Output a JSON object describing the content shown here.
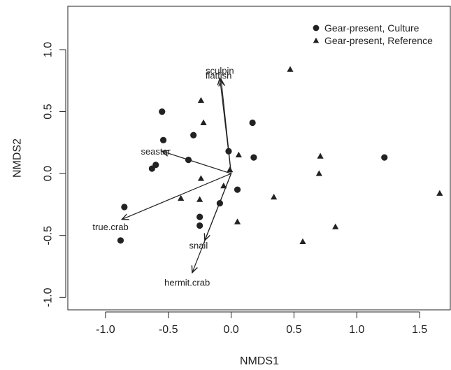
{
  "chart_data": {
    "type": "scatter",
    "title": "",
    "xlabel": "NMDS1",
    "ylabel": "NMDS2",
    "xlim": [
      -1.3,
      1.75
    ],
    "ylim": [
      -1.1,
      1.35
    ],
    "grid": false,
    "legend": {
      "placement": "top-right",
      "entries": [
        {
          "name": "Gear-present, Culture",
          "marker": "circle"
        },
        {
          "name": "Gear-present, Reference",
          "marker": "triangle"
        }
      ]
    },
    "x_ticks": [
      {
        "value": -1.0,
        "label": "-1.0"
      },
      {
        "value": -0.5,
        "label": "-0.5"
      },
      {
        "value": 0.0,
        "label": "0.0"
      },
      {
        "value": 0.5,
        "label": "0.5"
      },
      {
        "value": 1.0,
        "label": "1.0"
      },
      {
        "value": 1.5,
        "label": "1.5"
      }
    ],
    "y_ticks": [
      {
        "value": -1.0,
        "label": "-1.0"
      },
      {
        "value": -0.5,
        "label": "-0.5"
      },
      {
        "value": 0.0,
        "label": "0.0"
      },
      {
        "value": 0.5,
        "label": "0.5"
      },
      {
        "value": 1.0,
        "label": "1.0"
      }
    ],
    "series": [
      {
        "name": "Gear-present, Culture",
        "marker": "circle",
        "color": "#222222",
        "points": [
          {
            "x": -0.55,
            "y": 0.5
          },
          {
            "x": -0.54,
            "y": 0.27
          },
          {
            "x": -0.3,
            "y": 0.31
          },
          {
            "x": -0.6,
            "y": 0.07
          },
          {
            "x": -0.63,
            "y": 0.04
          },
          {
            "x": -0.34,
            "y": 0.11
          },
          {
            "x": -0.02,
            "y": 0.18
          },
          {
            "x": 0.17,
            "y": 0.41
          },
          {
            "x": 0.18,
            "y": 0.13
          },
          {
            "x": 1.22,
            "y": 0.13
          },
          {
            "x": 0.05,
            "y": -0.13
          },
          {
            "x": -0.09,
            "y": -0.24
          },
          {
            "x": -0.85,
            "y": -0.27
          },
          {
            "x": -0.25,
            "y": -0.35
          },
          {
            "x": -0.25,
            "y": -0.42
          },
          {
            "x": -0.88,
            "y": -0.54
          }
        ]
      },
      {
        "name": "Gear-present, Reference",
        "marker": "triangle",
        "color": "#222222",
        "points": [
          {
            "x": 0.47,
            "y": 0.84
          },
          {
            "x": -0.24,
            "y": 0.59
          },
          {
            "x": -0.22,
            "y": 0.41
          },
          {
            "x": 0.06,
            "y": 0.15
          },
          {
            "x": -0.01,
            "y": 0.03
          },
          {
            "x": 0.71,
            "y": 0.14
          },
          {
            "x": 0.7,
            "y": 0.0
          },
          {
            "x": -0.24,
            "y": -0.04
          },
          {
            "x": -0.06,
            "y": -0.1
          },
          {
            "x": -0.4,
            "y": -0.2
          },
          {
            "x": -0.25,
            "y": -0.21
          },
          {
            "x": 0.34,
            "y": -0.19
          },
          {
            "x": 1.66,
            "y": -0.16
          },
          {
            "x": 0.05,
            "y": -0.39
          },
          {
            "x": 0.83,
            "y": -0.43
          },
          {
            "x": 0.57,
            "y": -0.55
          }
        ]
      }
    ],
    "vectors": [
      {
        "name": "sculpin",
        "x": -0.09,
        "y": 0.77,
        "label": "sculpin",
        "label_x": -0.09,
        "label_y": 0.83,
        "label_anchor": "middle"
      },
      {
        "name": "flatfish",
        "x": -0.08,
        "y": 0.76,
        "label": "flatfish",
        "label_x": -0.1,
        "label_y": 0.79,
        "label_anchor": "middle"
      },
      {
        "name": "seastar",
        "x": -0.55,
        "y": 0.18,
        "label": "seastar",
        "label_x": -0.6,
        "label_y": 0.18,
        "label_anchor": "middle"
      },
      {
        "name": "true.crab",
        "x": -0.87,
        "y": -0.37,
        "label": "true.crab",
        "label_x": -0.96,
        "label_y": -0.43,
        "label_anchor": "middle"
      },
      {
        "name": "snail",
        "x": -0.21,
        "y": -0.54,
        "label": "snail",
        "label_x": -0.26,
        "label_y": -0.58,
        "label_anchor": "middle"
      },
      {
        "name": "hermit.crab",
        "x": -0.31,
        "y": -0.8,
        "label": "hermit.crab",
        "label_x": -0.35,
        "label_y": -0.88,
        "label_anchor": "middle"
      }
    ]
  }
}
